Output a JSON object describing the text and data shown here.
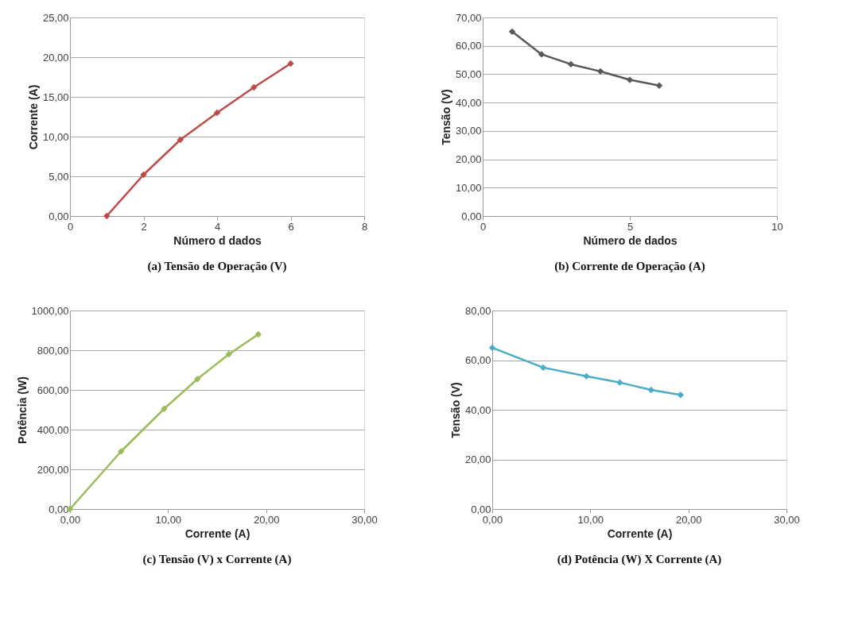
{
  "chart_data": [
    {
      "type": "line",
      "title": "(a) Tensão de Operação (V)",
      "xlabel": "Número d dados",
      "ylabel": "Corrente (A)",
      "x": [
        1,
        2,
        3,
        4,
        5,
        6
      ],
      "series": [
        {
          "color": "#be4b48",
          "values": [
            0,
            5.2,
            9.6,
            13.0,
            16.2,
            19.2
          ]
        }
      ],
      "xlim": [
        0,
        8
      ],
      "xticks": [
        0,
        2,
        4,
        6,
        8
      ],
      "ylim": [
        0,
        25
      ],
      "yticks": [
        {
          "value": 0,
          "label": "0,00"
        },
        {
          "value": 5,
          "label": "5,00"
        },
        {
          "value": 10,
          "label": "10,00"
        },
        {
          "value": 15,
          "label": "15,00"
        },
        {
          "value": 20,
          "label": "20,00"
        },
        {
          "value": 25,
          "label": "25,00"
        }
      ],
      "grid": "y",
      "marker": "diamond",
      "line_style": "solid",
      "legend": false
    },
    {
      "type": "line",
      "title": "(b) Corrente de Operação (A)",
      "xlabel": "Número de dados",
      "ylabel": "Tensão (V)",
      "x": [
        1,
        2,
        3,
        4,
        5,
        6
      ],
      "series": [
        {
          "color": "#595959",
          "values": [
            65,
            57,
            53.5,
            51,
            48,
            46
          ]
        }
      ],
      "xlim": [
        0,
        10
      ],
      "xticks": [
        0,
        5,
        10
      ],
      "ylim": [
        0,
        70
      ],
      "yticks": [
        {
          "value": 0,
          "label": "0,00"
        },
        {
          "value": 10,
          "label": "10,00"
        },
        {
          "value": 20,
          "label": "20,00"
        },
        {
          "value": 30,
          "label": "30,00"
        },
        {
          "value": 40,
          "label": "40,00"
        },
        {
          "value": 50,
          "label": "50,00"
        },
        {
          "value": 60,
          "label": "60,00"
        },
        {
          "value": 70,
          "label": "70,00"
        }
      ],
      "grid": "y",
      "marker": "diamond",
      "line_style": "solid",
      "legend": false
    },
    {
      "type": "line",
      "title": "(c) Tensão (V) x Corrente (A)",
      "xlabel": "Corrente (A)",
      "ylabel": "Potência (W)",
      "x": [
        0,
        5.2,
        9.6,
        13.0,
        16.2,
        19.2
      ],
      "series": [
        {
          "color": "#9bbb59",
          "values": [
            0,
            290,
            505,
            655,
            780,
            880
          ]
        }
      ],
      "xlim": [
        0,
        30
      ],
      "xticks": [
        {
          "value": 0,
          "label": "0,00"
        },
        {
          "value": 10,
          "label": "10,00"
        },
        {
          "value": 20,
          "label": "20,00"
        },
        {
          "value": 30,
          "label": "30,00"
        }
      ],
      "ylim": [
        0,
        1000
      ],
      "yticks": [
        {
          "value": 0,
          "label": "0,00"
        },
        {
          "value": 200,
          "label": "200,00"
        },
        {
          "value": 400,
          "label": "400,00"
        },
        {
          "value": 600,
          "label": "600,00"
        },
        {
          "value": 800,
          "label": "800,00"
        },
        {
          "value": 1000,
          "label": "1000,00"
        }
      ],
      "grid": "y",
      "marker": "diamond",
      "line_style": "solid",
      "legend": false
    },
    {
      "type": "line",
      "title": "(d) Potência (W) X Corrente (A)",
      "xlabel": "Corrente (A)",
      "ylabel": "Tensão (V)",
      "x": [
        0,
        5.2,
        9.6,
        13.0,
        16.2,
        19.2
      ],
      "series": [
        {
          "color": "#4bacc6",
          "values": [
            65,
            57,
            53.5,
            51,
            48,
            46
          ]
        }
      ],
      "xlim": [
        0,
        30
      ],
      "xticks": [
        {
          "value": 0,
          "label": "0,00"
        },
        {
          "value": 10,
          "label": "10,00"
        },
        {
          "value": 20,
          "label": "20,00"
        },
        {
          "value": 30,
          "label": "30,00"
        }
      ],
      "ylim": [
        0,
        80
      ],
      "yticks": [
        {
          "value": 0,
          "label": "0,00"
        },
        {
          "value": 20,
          "label": "20,00"
        },
        {
          "value": 40,
          "label": "40,00"
        },
        {
          "value": 60,
          "label": "60,00"
        },
        {
          "value": 80,
          "label": "80,00"
        }
      ],
      "grid": "y",
      "marker": "diamond",
      "line_style": "solid",
      "legend": false
    }
  ]
}
